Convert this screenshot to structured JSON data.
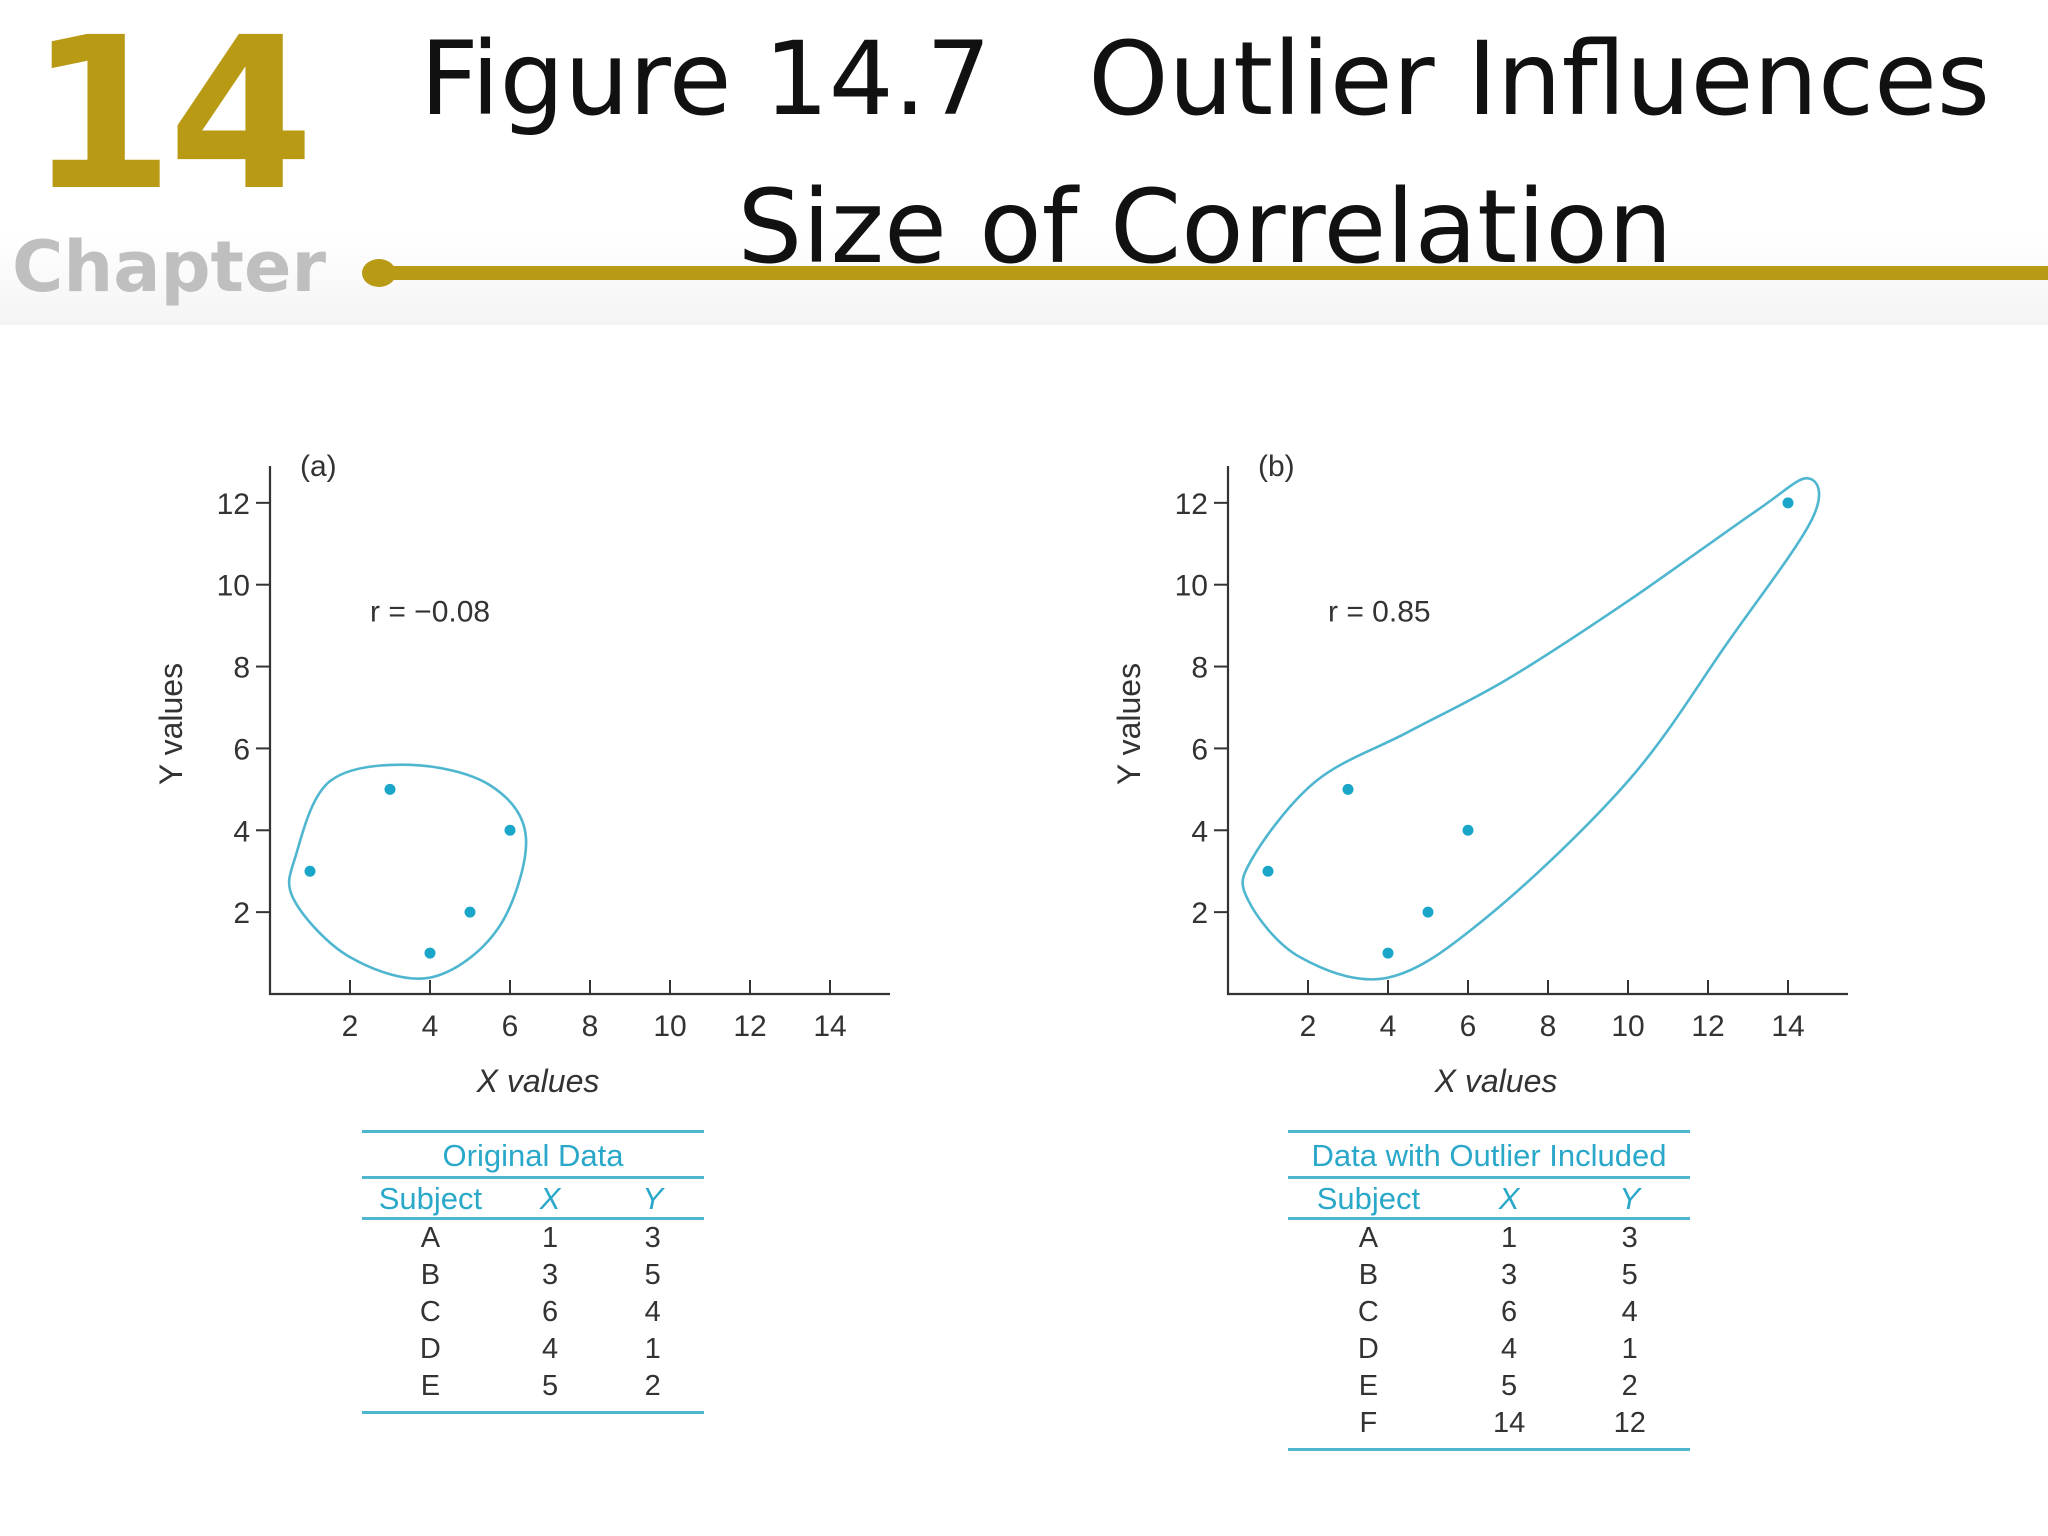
{
  "header": {
    "chapter_number": "14",
    "chapter_word": "Chapter",
    "title_line1": "Figure 14.7   Outlier Influences",
    "title_line2": "Size of Correlation"
  },
  "colors": {
    "accent_gold": "#b89a15",
    "point_blue": "#1aa6c8",
    "table_blue": "#2aa8c9"
  },
  "chart_data": [
    {
      "type": "scatter",
      "panel_label": "(a)",
      "annotation": "r = −0.08",
      "xlabel": "X  values",
      "ylabel": "Y  values",
      "xlim": [
        0,
        15.5
      ],
      "ylim": [
        0,
        12.9
      ],
      "xticks": [
        2,
        4,
        6,
        8,
        10,
        12,
        14
      ],
      "yticks": [
        2,
        4,
        6,
        8,
        10,
        12
      ],
      "points": [
        {
          "subject": "A",
          "x": 1,
          "y": 3
        },
        {
          "subject": "B",
          "x": 3,
          "y": 5
        },
        {
          "subject": "C",
          "x": 6,
          "y": 4
        },
        {
          "subject": "D",
          "x": 4,
          "y": 1
        },
        {
          "subject": "E",
          "x": 5,
          "y": 2
        }
      ],
      "outline": [
        [
          0.65,
          3.4
        ],
        [
          1.5,
          5.2
        ],
        [
          3.5,
          5.6
        ],
        [
          5.5,
          5.1
        ],
        [
          6.4,
          3.8
        ],
        [
          5.7,
          1.6
        ],
        [
          4.0,
          0.4
        ],
        [
          2.0,
          0.9
        ],
        [
          0.6,
          2.3
        ]
      ],
      "grid": false,
      "legend": "none"
    },
    {
      "type": "scatter",
      "panel_label": "(b)",
      "annotation": "r = 0.85",
      "xlabel": "X  values",
      "ylabel": "Y  values",
      "xlim": [
        0,
        15.5
      ],
      "ylim": [
        0,
        12.9
      ],
      "xticks": [
        2,
        4,
        6,
        8,
        10,
        12,
        14
      ],
      "yticks": [
        2,
        4,
        6,
        8,
        10,
        12
      ],
      "points": [
        {
          "subject": "A",
          "x": 1,
          "y": 3
        },
        {
          "subject": "B",
          "x": 3,
          "y": 5
        },
        {
          "subject": "C",
          "x": 6,
          "y": 4
        },
        {
          "subject": "D",
          "x": 4,
          "y": 1
        },
        {
          "subject": "E",
          "x": 5,
          "y": 2
        },
        {
          "subject": "F",
          "x": 14,
          "y": 12
        }
      ],
      "outline": [
        [
          0.6,
          3.3
        ],
        [
          2.2,
          5.2
        ],
        [
          4.5,
          6.4
        ],
        [
          7.0,
          7.7
        ],
        [
          10.0,
          9.6
        ],
        [
          13.2,
          11.8
        ],
        [
          14.5,
          12.6
        ],
        [
          14.6,
          11.6
        ],
        [
          12.5,
          8.6
        ],
        [
          10.0,
          5.2
        ],
        [
          6.5,
          1.9
        ],
        [
          4.0,
          0.4
        ],
        [
          1.8,
          0.9
        ],
        [
          0.5,
          2.3
        ]
      ],
      "grid": false,
      "legend": "none"
    }
  ],
  "tables": [
    {
      "caption": "Original Data",
      "headers": [
        "Subject",
        "X",
        "Y"
      ],
      "rows": [
        [
          "A",
          "1",
          "3"
        ],
        [
          "B",
          "3",
          "5"
        ],
        [
          "C",
          "6",
          "4"
        ],
        [
          "D",
          "4",
          "1"
        ],
        [
          "E",
          "5",
          "2"
        ]
      ]
    },
    {
      "caption": "Data with Outlier Included",
      "headers": [
        "Subject",
        "X",
        "Y"
      ],
      "rows": [
        [
          "A",
          "1",
          "3"
        ],
        [
          "B",
          "3",
          "5"
        ],
        [
          "C",
          "6",
          "4"
        ],
        [
          "D",
          "4",
          "1"
        ],
        [
          "E",
          "5",
          "2"
        ],
        [
          "F",
          "14",
          "12"
        ]
      ]
    }
  ]
}
